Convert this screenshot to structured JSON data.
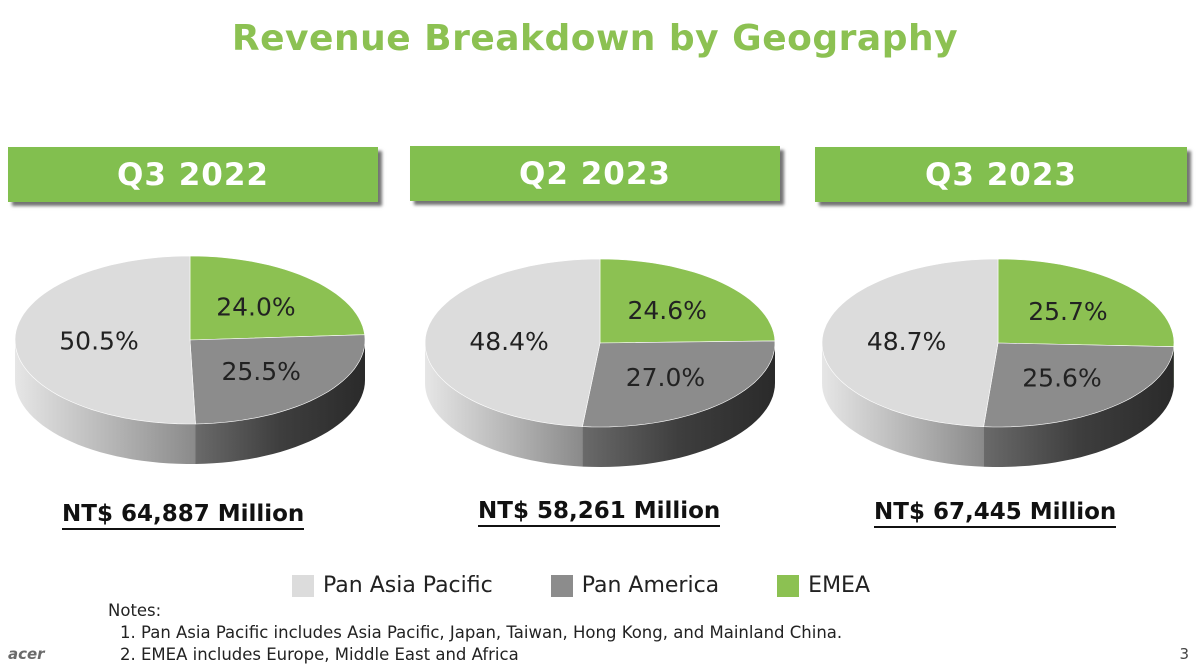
{
  "title": "Revenue Breakdown by Geography",
  "colors": {
    "pan_asia_pacific": "#dcdcdc",
    "pan_america": "#8c8c8c",
    "emea": "#8cc152",
    "header_bar": "#82bf4f"
  },
  "legend": {
    "pan_asia_pacific": "Pan Asia Pacific",
    "pan_america": "Pan America",
    "emea": "EMEA"
  },
  "chart_data": [
    {
      "type": "pie",
      "title": "Q3 2022",
      "total_label": "NT$ 64,887 Million",
      "slices": [
        {
          "name": "EMEA",
          "value": 24.0,
          "label": "24.0%"
        },
        {
          "name": "Pan America",
          "value": 25.5,
          "label": "25.5%"
        },
        {
          "name": "Pan Asia Pacific",
          "value": 50.5,
          "label": "50.5%"
        }
      ]
    },
    {
      "type": "pie",
      "title": "Q2 2023",
      "total_label": "NT$ 58,261 Million",
      "slices": [
        {
          "name": "EMEA",
          "value": 24.6,
          "label": "24.6%"
        },
        {
          "name": "Pan America",
          "value": 27.0,
          "label": "27.0%"
        },
        {
          "name": "Pan Asia Pacific",
          "value": 48.4,
          "label": "48.4%"
        }
      ]
    },
    {
      "type": "pie",
      "title": "Q3 2023",
      "total_label": "NT$ 67,445 Million",
      "slices": [
        {
          "name": "EMEA",
          "value": 25.7,
          "label": "25.7%"
        },
        {
          "name": "Pan America",
          "value": 25.6,
          "label": "25.6%"
        },
        {
          "name": "Pan Asia Pacific",
          "value": 48.7,
          "label": "48.7%"
        }
      ]
    }
  ],
  "notes": {
    "heading": "Notes:",
    "items": [
      "Pan Asia Pacific includes Asia Pacific, Japan, Taiwan, Hong Kong, and Mainland China.",
      "EMEA includes Europe, Middle East and Africa"
    ]
  },
  "logo": "acer",
  "page_number": "3"
}
